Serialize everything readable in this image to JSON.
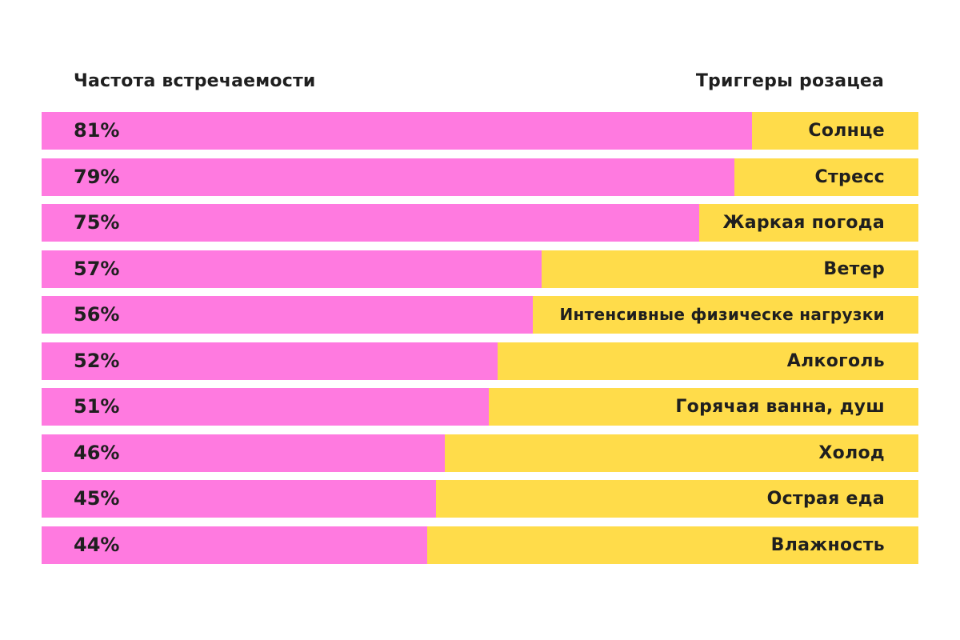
{
  "header": {
    "left": "Частота встречаемости",
    "right": "Триггеры розацеа"
  },
  "colors": {
    "bar": "#ff7ae0",
    "background_bar": "#ffdc4a",
    "text": "#1f1f1f"
  },
  "chart_data": {
    "type": "bar",
    "orientation": "horizontal",
    "categories": [
      "Солнце",
      "Стресс",
      "Жаркая погода",
      "Ветер",
      "Интенсивные физическе нагрузки",
      "Алкоголь",
      "Горячая ванна, душ",
      "Холод",
      "Острая еда",
      "Влажность"
    ],
    "values": [
      81,
      79,
      75,
      57,
      56,
      52,
      51,
      46,
      45,
      44
    ],
    "value_labels": [
      "81%",
      "79%",
      "75%",
      "57%",
      "56%",
      "52%",
      "51%",
      "46%",
      "45%",
      "44%"
    ],
    "xlim": [
      0,
      100
    ],
    "grid": false,
    "legend": "none"
  }
}
